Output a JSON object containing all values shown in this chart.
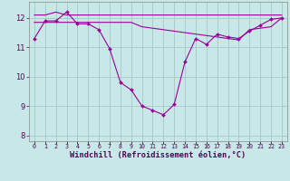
{
  "hours": [
    0,
    1,
    2,
    3,
    4,
    5,
    6,
    7,
    8,
    9,
    10,
    11,
    12,
    13,
    14,
    15,
    16,
    17,
    18,
    19,
    20,
    21,
    22,
    23
  ],
  "line1": [
    11.3,
    11.9,
    11.9,
    12.2,
    11.8,
    11.8,
    11.6,
    10.95,
    9.8,
    9.55,
    9.0,
    8.85,
    8.7,
    9.05,
    10.5,
    11.3,
    11.1,
    11.45,
    11.35,
    11.3,
    11.55,
    11.75,
    11.95,
    12.0
  ],
  "line2_flat": [
    12.1,
    12.1,
    12.2,
    12.1,
    12.1,
    12.1,
    12.1,
    12.1,
    12.1,
    12.1,
    12.1,
    12.1,
    12.1,
    12.1,
    12.1,
    12.1,
    12.1,
    12.1,
    12.1,
    12.1,
    12.1,
    12.1,
    12.1,
    12.1
  ],
  "line3_slope": [
    11.85,
    11.85,
    11.85,
    11.85,
    11.85,
    11.85,
    11.85,
    11.85,
    11.85,
    11.85,
    11.7,
    11.65,
    11.6,
    11.55,
    11.5,
    11.45,
    11.4,
    11.35,
    11.3,
    11.25,
    11.6,
    11.65,
    11.7,
    12.0
  ],
  "line_color": "#990099",
  "bg_color": "#c8e8e8",
  "grid_color": "#aacccc",
  "ylim": [
    7.8,
    12.55
  ],
  "xlim": [
    -0.5,
    23.5
  ],
  "yticks": [
    8,
    9,
    10,
    11,
    12
  ],
  "xtick_labels": [
    "0",
    "1",
    "2",
    "3",
    "4",
    "5",
    "6",
    "7",
    "8",
    "9",
    "10",
    "11",
    "12",
    "13",
    "14",
    "15",
    "16",
    "17",
    "18",
    "19",
    "20",
    "21",
    "22",
    "23"
  ],
  "xlabel": "Windchill (Refroidissement éolien,°C)"
}
